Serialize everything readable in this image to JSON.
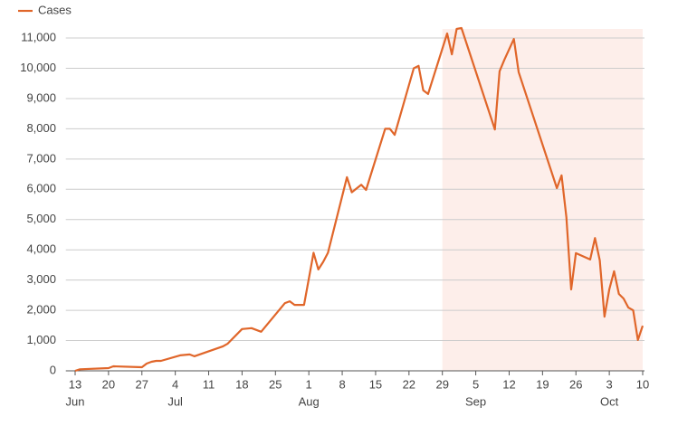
{
  "chart_data": {
    "type": "line",
    "series": [
      {
        "name": "Cases",
        "color": "#e0662a",
        "x": [
          0,
          1,
          7,
          8,
          14,
          15,
          16,
          17,
          18,
          22,
          24,
          25,
          31,
          32,
          35,
          37,
          39,
          44,
          45,
          46,
          48,
          50,
          51,
          52,
          53,
          57,
          58,
          60,
          61,
          65,
          66,
          67,
          71,
          72,
          73,
          74,
          78,
          79,
          80,
          81,
          88,
          89,
          90,
          92,
          93,
          101,
          102,
          103,
          104,
          105,
          108,
          109,
          110,
          111,
          112,
          113,
          114,
          115,
          116,
          117,
          118,
          119
        ],
        "values": [
          0,
          50,
          90,
          150,
          120,
          240,
          300,
          330,
          330,
          510,
          540,
          480,
          810,
          900,
          1380,
          1410,
          1290,
          2240,
          2300,
          2180,
          2180,
          3900,
          3350,
          3600,
          3900,
          6400,
          5900,
          6150,
          5980,
          8000,
          8000,
          7800,
          10000,
          10080,
          9270,
          9150,
          11150,
          10460,
          11300,
          11330,
          7980,
          9900,
          10280,
          10970,
          9870,
          6040,
          6460,
          5080,
          2690,
          3890,
          3680,
          4390,
          3650,
          1790,
          2690,
          3290,
          2540,
          2390,
          2090,
          2000,
          1020,
          1490
        ]
      }
    ],
    "xlim": [
      -1,
      119
    ],
    "xticks": [
      {
        "value": 0,
        "label": "13"
      },
      {
        "value": 7,
        "label": "20"
      },
      {
        "value": 14,
        "label": "27"
      },
      {
        "value": 21,
        "label": "4"
      },
      {
        "value": 28,
        "label": "11"
      },
      {
        "value": 35,
        "label": "18"
      },
      {
        "value": 42,
        "label": "25"
      },
      {
        "value": 49,
        "label": "1"
      },
      {
        "value": 56,
        "label": "8"
      },
      {
        "value": 63,
        "label": "15"
      },
      {
        "value": 70,
        "label": "22"
      },
      {
        "value": 77,
        "label": "29"
      },
      {
        "value": 84,
        "label": "5"
      },
      {
        "value": 91,
        "label": "12"
      },
      {
        "value": 98,
        "label": "19"
      },
      {
        "value": 105,
        "label": "26"
      },
      {
        "value": 112,
        "label": "3"
      },
      {
        "value": 119,
        "label": "10"
      }
    ],
    "months": [
      {
        "value": 0,
        "label": "Jun"
      },
      {
        "value": 21,
        "label": "Jul"
      },
      {
        "value": 49,
        "label": "Aug"
      },
      {
        "value": 84,
        "label": "Sep"
      },
      {
        "value": 112,
        "label": "Oct"
      }
    ],
    "ylim": [
      0,
      11300
    ],
    "yticks": [
      0,
      {
        "value": 1000,
        "label": "1,000"
      },
      {
        "value": 2000,
        "label": "2,000"
      },
      {
        "value": 3000,
        "label": "3,000"
      },
      {
        "value": 4000,
        "label": "4,000"
      },
      {
        "value": 5000,
        "label": "5,000"
      },
      {
        "value": 6000,
        "label": "6,000"
      },
      {
        "value": 7000,
        "label": "7,000"
      },
      {
        "value": 8000,
        "label": "8,000"
      },
      {
        "value": 9000,
        "label": "9,000"
      },
      {
        "value": 10000,
        "label": "10,000"
      },
      {
        "value": 11000,
        "label": "11,000"
      }
    ],
    "shaded_range": [
      77,
      119
    ],
    "shade_color": "#fdeeea",
    "grid": true
  }
}
